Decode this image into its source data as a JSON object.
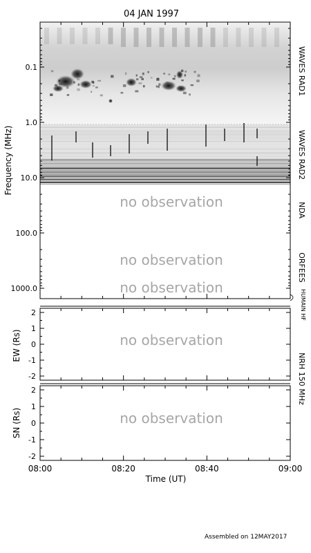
{
  "chart_data": {
    "type": "heatmap",
    "title": "04 JAN 1997",
    "footer": "Assembled on 12MAY2017",
    "x_axis": {
      "label": "Time (UT)",
      "range": [
        "08:00",
        "09:00"
      ],
      "ticks": [
        "08:00",
        "08:20",
        "08:40",
        "09:00"
      ]
    },
    "spectrogram": {
      "ylabel": "Frequency (MHz)",
      "scale": "log",
      "ylim": [
        0.02,
        1500
      ],
      "ticks": [
        "0.1",
        "1.0",
        "10.0",
        "100.0",
        "1000.0"
      ],
      "bands": [
        {
          "name": "WAVES RAD1",
          "freq_range": [
            0.02,
            1.0
          ],
          "status": "data"
        },
        {
          "name": "WAVES RAD2",
          "freq_range": [
            1.0,
            14.0
          ],
          "status": "data"
        },
        {
          "name": "NDA",
          "freq_range": [
            14.0,
            150.0
          ],
          "status": "no observation"
        },
        {
          "name": "ORFEES",
          "freq_range": [
            150.0,
            800.0
          ],
          "status": "no observation"
        },
        {
          "name": "HUMAIN HF",
          "freq_range": [
            800.0,
            1500.0
          ],
          "status": "no observation"
        }
      ]
    },
    "nrh_label": "NRH 150 MHz",
    "ew_panel": {
      "ylabel": "EW (Rs)",
      "ylim": [
        -2,
        2
      ],
      "ticks": [
        "-2",
        "-1",
        "0",
        "1",
        "2"
      ],
      "status": "no observation"
    },
    "sn_panel": {
      "ylabel": "SN (Rs)",
      "ylim": [
        -2,
        2
      ],
      "ticks": [
        "-2",
        "-1",
        "0",
        "1",
        "2"
      ],
      "status": "no observation"
    },
    "grid": false,
    "legend": "none"
  },
  "colors": {
    "no_observation_text": "#a6a6a6",
    "axis": "#000000",
    "spectrogram_background": "#f1f1f1",
    "burst": "#1a1a1a"
  }
}
